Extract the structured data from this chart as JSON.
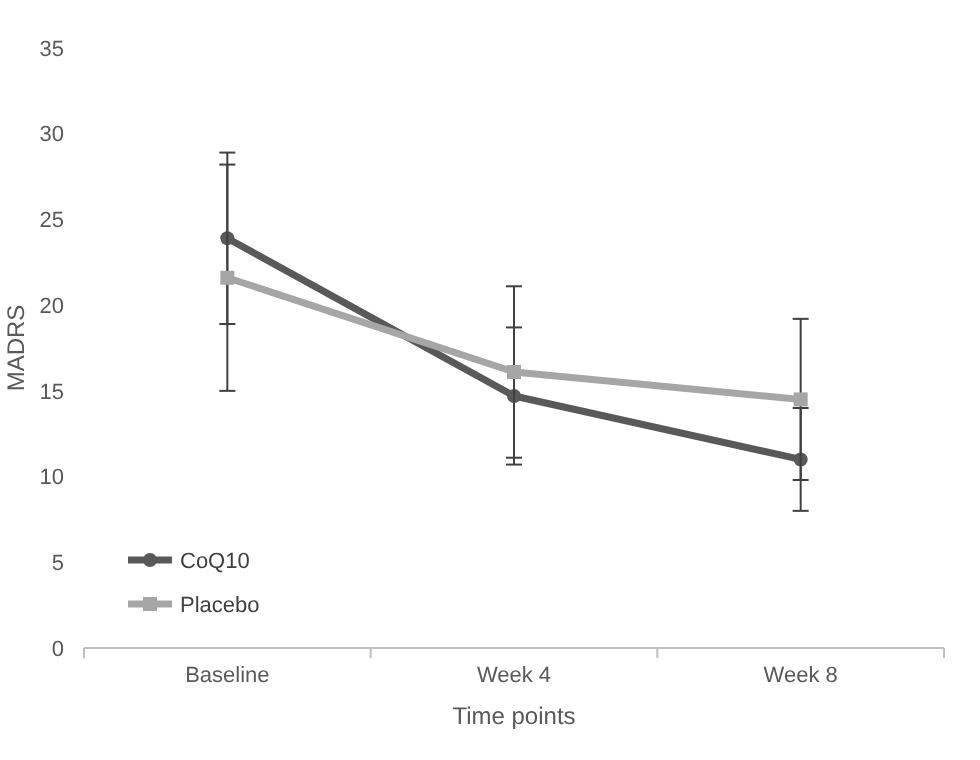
{
  "chart_data": {
    "type": "line",
    "xlabel": "Time points",
    "ylabel": "MADRS",
    "categories": [
      "Baseline",
      "Week 4",
      "Week 8"
    ],
    "ylim": [
      0,
      35
    ],
    "yticks": [
      0,
      5,
      10,
      15,
      20,
      25,
      30,
      35
    ],
    "legend": "bottom left",
    "grid": false,
    "series": [
      {
        "name": "CoQ10",
        "color": "#595959",
        "marker": "circle",
        "values": [
          23.9,
          14.7,
          11.0
        ],
        "errors": [
          5,
          4,
          3
        ]
      },
      {
        "name": "Placebo",
        "color": "#a6a6a6",
        "marker": "square",
        "values": [
          21.6,
          16.1,
          14.5
        ],
        "errors": [
          6.6,
          5,
          4.7
        ]
      }
    ]
  }
}
